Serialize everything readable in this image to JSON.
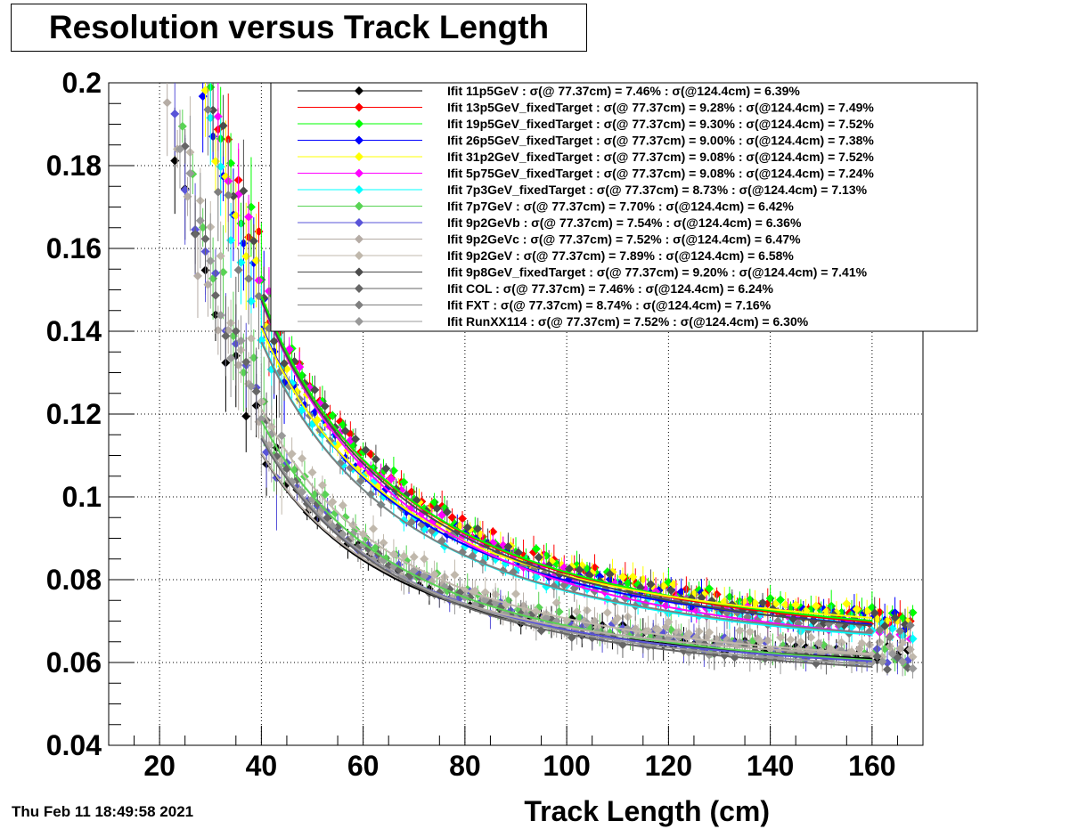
{
  "title": "Resolution versus Track Length",
  "date": "Thu Feb 11 18:49:58 2021",
  "chart_data": {
    "type": "scatter",
    "title": "Resolution versus Track Length",
    "xlabel": "Track Length (cm)",
    "ylabel": "",
    "xlim": [
      10,
      170
    ],
    "ylim": [
      0.04,
      0.2
    ],
    "xticks": [
      "20",
      "40",
      "60",
      "80",
      "100",
      "120",
      "140",
      "160"
    ],
    "yticks": [
      "0.04",
      "0.06",
      "0.08",
      "0.1",
      "0.12",
      "0.14",
      "0.16",
      "0.18",
      "0.2"
    ],
    "grid": true,
    "legend_position": "top-right",
    "series": [
      {
        "name": "Ifit 11p5GeV : σ(@ 77.37cm) =  7.46% : σ(@124.4cm) =  6.39%",
        "color": "#000000",
        "s77": 0.0746,
        "s124": 0.0639
      },
      {
        "name": "Ifit 13p5GeV_fixedTarget : σ(@ 77.37cm) =  9.28% : σ(@124.4cm) =  7.49%",
        "color": "#ff0000",
        "s77": 0.0928,
        "s124": 0.0749
      },
      {
        "name": "Ifit 19p5GeV_fixedTarget : σ(@ 77.37cm) =  9.30% : σ(@124.4cm) =  7.52%",
        "color": "#00ff00",
        "s77": 0.093,
        "s124": 0.0752
      },
      {
        "name": "Ifit 26p5GeV_fixedTarget : σ(@ 77.37cm) =  9.00% : σ(@124.4cm) =  7.38%",
        "color": "#0000ff",
        "s77": 0.09,
        "s124": 0.0738
      },
      {
        "name": "Ifit 31p2GeV_fixedTarget : σ(@ 77.37cm) =  9.08% : σ(@124.4cm) =  7.52%",
        "color": "#ffff00",
        "s77": 0.0908,
        "s124": 0.0752
      },
      {
        "name": "Ifit 5p75GeV_fixedTarget : σ(@ 77.37cm) =  9.08% : σ(@124.4cm) =  7.24%",
        "color": "#ff00ff",
        "s77": 0.0908,
        "s124": 0.0724
      },
      {
        "name": "Ifit 7p3GeV_fixedTarget : σ(@ 77.37cm) =  8.73% : σ(@124.4cm) =  7.13%",
        "color": "#00ffff",
        "s77": 0.0873,
        "s124": 0.0713
      },
      {
        "name": "Ifit 7p7GeV : σ(@ 77.37cm) =  7.70% : σ(@124.4cm) =  6.42%",
        "color": "#59d354",
        "s77": 0.077,
        "s124": 0.0642
      },
      {
        "name": "Ifit 9p2GeVb : σ(@ 77.37cm) =  7.54% : σ(@124.4cm) =  6.36%",
        "color": "#5954d8",
        "s77": 0.0754,
        "s124": 0.0636
      },
      {
        "name": "Ifit 9p2GeVc : σ(@ 77.37cm) =  7.52% : σ(@124.4cm) =  6.47%",
        "color": "#b5aca5",
        "s77": 0.0752,
        "s124": 0.0647
      },
      {
        "name": "Ifit 9p2GeV : σ(@ 77.37cm) =  7.89% : σ(@124.4cm) =  6.58%",
        "color": "#c0b8ac",
        "s77": 0.0789,
        "s124": 0.0658
      },
      {
        "name": "Ifit 9p8GeV_fixedTarget : σ(@ 77.37cm) =  9.20% : σ(@124.4cm) =  7.41%",
        "color": "#4c4c4c",
        "s77": 0.092,
        "s124": 0.0741
      },
      {
        "name": "Ifit COL : σ(@ 77.37cm) =  7.46% : σ(@124.4cm) =  6.24%",
        "color": "#666666",
        "s77": 0.0746,
        "s124": 0.0624
      },
      {
        "name": "Ifit FXT : σ(@ 77.37cm) =  8.74% : σ(@124.4cm) =  7.16%",
        "color": "#7f7f7f",
        "s77": 0.0874,
        "s124": 0.0716
      },
      {
        "name": "Ifit RunXX114 : σ(@ 77.37cm) =  7.52% : σ(@124.4cm) =  6.30%",
        "color": "#999999",
        "s77": 0.0752,
        "s124": 0.063
      }
    ]
  }
}
